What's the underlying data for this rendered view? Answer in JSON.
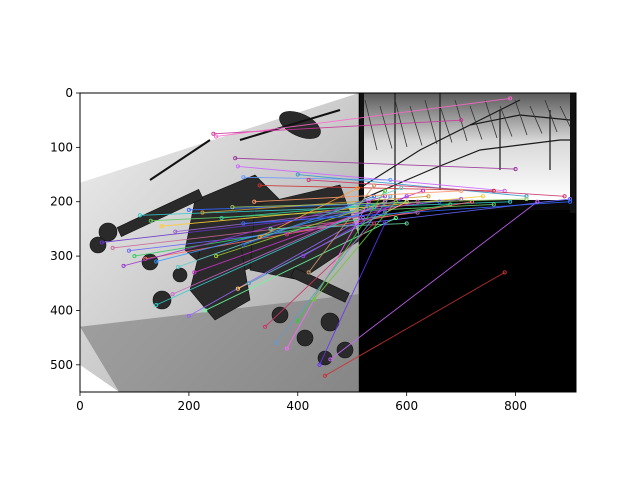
{
  "chart_data": {
    "type": "image-keypoint-matches",
    "title": "",
    "xlabel": "",
    "ylabel": "",
    "xlim": [
      0,
      911
    ],
    "ylim": [
      550,
      0
    ],
    "x_ticks": [
      0,
      200,
      400,
      600,
      800
    ],
    "y_ticks": [
      0,
      100,
      200,
      300,
      400,
      500
    ],
    "panels": [
      {
        "name": "left-image",
        "x": [
          0,
          512
        ],
        "y": [
          0,
          550
        ],
        "description": "rotated grayscale helicopter photo"
      },
      {
        "name": "right-image",
        "x": [
          512,
          911
        ],
        "y": [
          0,
          550
        ],
        "description": "bridge photo on black background"
      }
    ],
    "matches": [
      [
        245,
        75,
        700,
        50,
        "#cc3399"
      ],
      [
        250,
        80,
        790,
        10,
        "#ff66cc"
      ],
      [
        285,
        120,
        800,
        140,
        "#993399"
      ],
      [
        290,
        135,
        780,
        180,
        "#cc66ff"
      ],
      [
        300,
        155,
        570,
        160,
        "#6699ff"
      ],
      [
        330,
        170,
        760,
        180,
        "#cc3333"
      ],
      [
        400,
        150,
        820,
        190,
        "#3399cc"
      ],
      [
        420,
        160,
        890,
        190,
        "#cc3366"
      ],
      [
        110,
        225,
        790,
        200,
        "#33cccc"
      ],
      [
        130,
        235,
        760,
        205,
        "#66cc66"
      ],
      [
        150,
        245,
        740,
        190,
        "#ffcc33"
      ],
      [
        175,
        255,
        700,
        195,
        "#9966cc"
      ],
      [
        200,
        215,
        660,
        200,
        "#3366ff"
      ],
      [
        225,
        220,
        640,
        190,
        "#cc9933"
      ],
      [
        260,
        230,
        600,
        200,
        "#33cc99"
      ],
      [
        40,
        275,
        560,
        215,
        "#6633cc"
      ],
      [
        60,
        285,
        620,
        220,
        "#cc6699"
      ],
      [
        90,
        290,
        900,
        195,
        "#6666ff"
      ],
      [
        100,
        300,
        680,
        205,
        "#33cc66"
      ],
      [
        120,
        305,
        720,
        200,
        "#ff6666"
      ],
      [
        80,
        318,
        560,
        190,
        "#9933cc"
      ],
      [
        140,
        310,
        530,
        210,
        "#3399ff"
      ],
      [
        180,
        320,
        590,
        175,
        "#66cccc"
      ],
      [
        210,
        330,
        630,
        180,
        "#cc33cc"
      ],
      [
        250,
        300,
        560,
        200,
        "#99cc33"
      ],
      [
        300,
        280,
        540,
        190,
        "#3366cc"
      ],
      [
        330,
        265,
        510,
        175,
        "#ff9933"
      ],
      [
        350,
        250,
        600,
        240,
        "#66cc99"
      ],
      [
        380,
        260,
        620,
        200,
        "#cc3399"
      ],
      [
        140,
        390,
        540,
        210,
        "#33cccc"
      ],
      [
        170,
        370,
        560,
        200,
        "#cc66cc"
      ],
      [
        200,
        410,
        520,
        230,
        "#9966ff"
      ],
      [
        230,
        400,
        580,
        230,
        "#66ff99"
      ],
      [
        290,
        360,
        600,
        200,
        "#ffcc66"
      ],
      [
        310,
        350,
        560,
        220,
        "#3399cc"
      ],
      [
        340,
        430,
        540,
        240,
        "#cc3366"
      ],
      [
        360,
        460,
        570,
        190,
        "#6699cc"
      ],
      [
        380,
        470,
        530,
        200,
        "#ff66ff"
      ],
      [
        400,
        420,
        560,
        180,
        "#33cc33"
      ],
      [
        410,
        300,
        600,
        190,
        "#9933ff"
      ],
      [
        420,
        330,
        540,
        170,
        "#cc9966"
      ],
      [
        430,
        380,
        580,
        200,
        "#66cc33"
      ],
      [
        440,
        500,
        560,
        240,
        "#6633ff"
      ],
      [
        450,
        520,
        780,
        330,
        "#cc3333"
      ],
      [
        460,
        490,
        840,
        200,
        "#cc66ff"
      ],
      [
        300,
        240,
        900,
        200,
        "#3366ff"
      ],
      [
        320,
        200,
        700,
        180,
        "#ff9966"
      ],
      [
        280,
        210,
        820,
        195,
        "#99cc66"
      ]
    ]
  }
}
